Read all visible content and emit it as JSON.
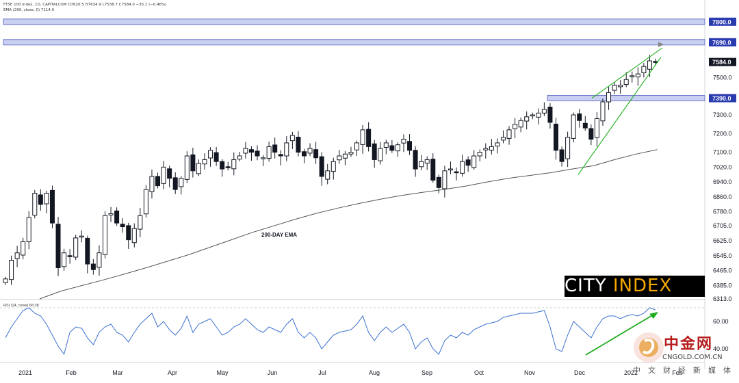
{
  "header": {
    "line1": "FTSE 100 Index, 1D, CAPITALCOM  O7620.5  H7634.9  L7538.7  C7584.0  −35.1 (−0.46%)",
    "line2": "EMA (200, close, 0)  7114.0"
  },
  "branding": {
    "logo_text_a": "CITY ",
    "logo_text_b": "INDEX"
  },
  "watermark": {
    "name": "中金网",
    "url": "CNGOLD.COM.CN",
    "subtitle": "中文财经新媒体"
  },
  "colors": {
    "up": "#131722",
    "down": "#131722",
    "ema": "#555555",
    "rsi": "#3a6fd1",
    "wedge": "#2db52d",
    "resistance": "#6b76c9",
    "arrow": "#1faa1f"
  },
  "chart_data": [
    {
      "type": "candlestick",
      "title": "",
      "xlabel": "",
      "ylabel": "",
      "ylim": [
        6313,
        7880
      ],
      "x_labels": [
        "2021",
        "Feb",
        "Mar",
        "Apr",
        "May",
        "Jun",
        "Jul",
        "Aug",
        "Sep",
        "Oct",
        "Nov",
        "Dec",
        "2022",
        "Feb"
      ],
      "y_ticks": [
        6313,
        6385,
        6465,
        6545,
        6625,
        6705,
        6780,
        6860,
        6940,
        7020,
        7100,
        7200,
        7300,
        7500
      ],
      "y_tick_labels": [
        "6313.0",
        "6385.0",
        "6465.0",
        "6545.0",
        "6625.0",
        "6705.0",
        "6780.0",
        "6860.0",
        "6940.0",
        "7020.0",
        "7100.0",
        "7200.0",
        "7300.0",
        "7500.0"
      ],
      "price_markers": [
        {
          "label": "7800.0",
          "value": 7800
        },
        {
          "label": "7690.0",
          "value": 7690
        },
        {
          "label": "7584.0",
          "value": 7584
        },
        {
          "label": "7390.0",
          "value": 7390
        }
      ],
      "annotations": [
        {
          "text": "200-DAY EMA"
        }
      ],
      "series": [
        {
          "name": "FTSE 100 Index",
          "closes": [
            6420,
            6520,
            6560,
            6620,
            6750,
            6880,
            6820,
            6880,
            6720,
            6480,
            6560,
            6540,
            6640,
            6650,
            6500,
            6470,
            6560,
            6760,
            6770,
            6720,
            6700,
            6630,
            6690,
            6760,
            6900,
            6970,
            6920,
            7020,
            6960,
            6900,
            6960,
            7080,
            7000,
            7040,
            7060,
            7110,
            7050,
            7010,
            7020,
            7060,
            7080,
            7120,
            7100,
            7080,
            7070,
            7130,
            7100,
            7080,
            7150,
            7190,
            7100,
            7080,
            7120,
            7070,
            6970,
            7000,
            7050,
            7080,
            7090,
            7100,
            7150,
            7220,
            7130,
            7060,
            7120,
            7150,
            7110,
            7140,
            7170,
            7110,
            7010,
            7050,
            7060,
            6950,
            6910,
            7000,
            7010,
            6990,
            7050,
            7030,
            7080,
            7100,
            7120,
            7130,
            7150,
            7180,
            7220,
            7250,
            7270,
            7290,
            7300,
            7310,
            7330,
            7260,
            7110,
            7050,
            7180,
            7300,
            7270,
            7230,
            7170,
            7280,
            7370,
            7420,
            7460,
            7460,
            7490,
            7510,
            7520,
            7560,
            7590,
            7584
          ]
        },
        {
          "name": "EMA (200, close, 0)",
          "values": [
            6313,
            6355,
            6385,
            6415,
            6447,
            6480,
            6515,
            6550,
            6590,
            6630,
            6670,
            6705,
            6740,
            6772,
            6800,
            6825,
            6848,
            6868,
            6885,
            6900,
            6918,
            6940,
            6960,
            6975,
            6990,
            7010,
            7027,
            7060,
            7090,
            7114
          ]
        }
      ]
    },
    {
      "type": "line",
      "title": "",
      "header": "RSI (14, close)  68.38",
      "xlabel": "",
      "ylabel": "",
      "ylim": [
        30,
        75
      ],
      "y_ticks": [
        60,
        40
      ],
      "y_tick_labels": [
        "60.00",
        "40.00"
      ],
      "series": [
        {
          "name": "RSI (14, close)",
          "values": [
            48,
            56,
            62,
            68,
            70,
            66,
            64,
            58,
            50,
            42,
            36,
            52,
            56,
            55,
            48,
            43,
            52,
            56,
            58,
            52,
            50,
            45,
            52,
            58,
            62,
            66,
            56,
            60,
            54,
            50,
            55,
            64,
            52,
            58,
            60,
            62,
            56,
            50,
            52,
            56,
            58,
            62,
            58,
            54,
            52,
            56,
            54,
            52,
            58,
            62,
            52,
            48,
            52,
            48,
            40,
            45,
            50,
            52,
            53,
            54,
            58,
            64,
            52,
            46,
            52,
            56,
            52,
            55,
            58,
            52,
            40,
            45,
            48,
            40,
            36,
            46,
            50,
            48,
            52,
            50,
            54,
            56,
            58,
            59,
            60,
            63,
            64,
            65,
            66,
            66,
            66,
            67,
            68,
            56,
            40,
            38,
            50,
            60,
            56,
            52,
            48,
            56,
            62,
            64,
            64,
            62,
            64,
            65,
            64,
            66,
            70,
            68.38
          ]
        }
      ]
    }
  ]
}
